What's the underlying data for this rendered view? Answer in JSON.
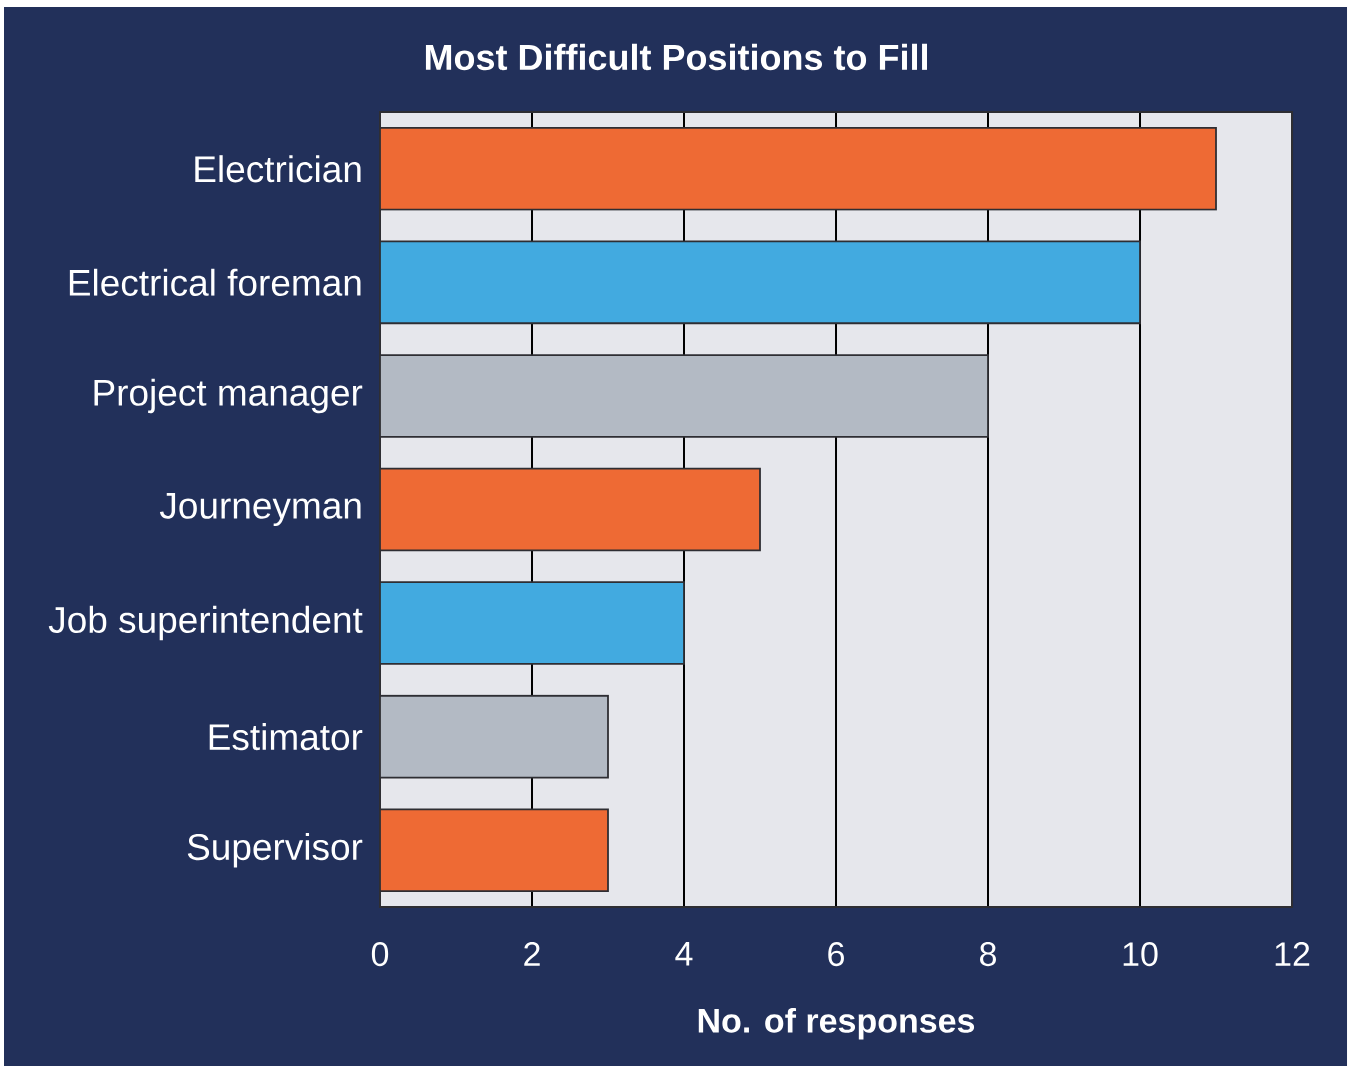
{
  "chart_data": {
    "type": "bar",
    "orientation": "horizontal",
    "title": "Most Difficult Positions to Fill",
    "xlabel": "No. of responses",
    "categories": [
      "Electrician",
      "Electrical foreman",
      "Project manager",
      "Journeyman",
      "Job superintendent",
      "Estimator",
      "Supervisor"
    ],
    "values": [
      11,
      10,
      8,
      5,
      4,
      3,
      3
    ],
    "colors": [
      "#ee6a34",
      "#42aae0",
      "#b3bac4",
      "#ee6a34",
      "#42aae0",
      "#b3bac4",
      "#ee6a34"
    ],
    "xlim": [
      0,
      12
    ],
    "xticks": [
      0,
      2,
      4,
      6,
      8,
      10,
      12
    ],
    "grid": "x"
  }
}
